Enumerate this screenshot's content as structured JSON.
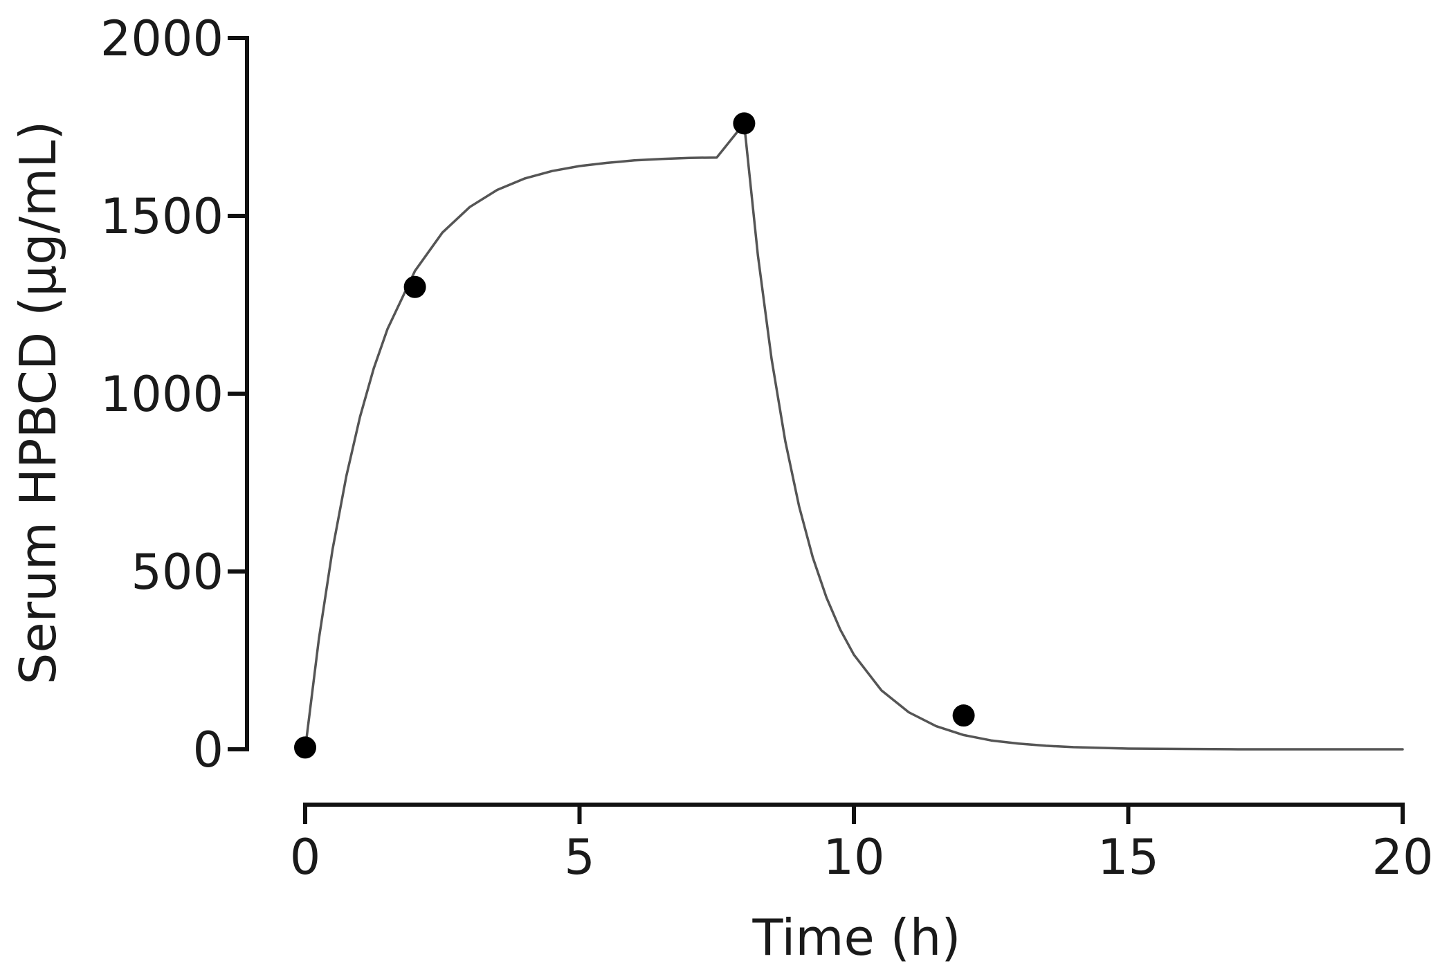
{
  "chart_data": {
    "type": "line",
    "title": "",
    "xlabel": "Time (h)",
    "ylabel": "Serum HPBCD (µg/mL)",
    "xlim": [
      0,
      20
    ],
    "ylim": [
      0,
      2000
    ],
    "xticks": [
      0,
      5,
      10,
      15,
      20
    ],
    "yticks": [
      0,
      500,
      1000,
      1500,
      2000
    ],
    "xtick_labels": [
      "0",
      "5",
      "10",
      "15",
      "20"
    ],
    "ytick_labels": [
      "0",
      "500",
      "1000",
      "1500",
      "2000"
    ],
    "grid": false,
    "legend": "none",
    "series": [
      {
        "kind": "scatter",
        "x": [
          0,
          2,
          8,
          12
        ],
        "y": [
          5,
          1300,
          1760,
          95
        ]
      },
      {
        "kind": "fit-line",
        "x": [
          0,
          0.25,
          0.5,
          0.75,
          1,
          1.25,
          1.5,
          2,
          2.5,
          3,
          3.5,
          4,
          4.5,
          5,
          5.5,
          6,
          6.5,
          7,
          7.5,
          8,
          8.25,
          8.5,
          8.75,
          9,
          9.25,
          9.5,
          9.75,
          10,
          10.5,
          11,
          11.5,
          12,
          12.5,
          13,
          13.5,
          14,
          15,
          16,
          17,
          18,
          19,
          20
        ],
        "y": [
          0,
          310,
          562,
          768,
          935,
          1071,
          1182,
          1345,
          1453,
          1525,
          1573,
          1605,
          1626,
          1640,
          1649,
          1656,
          1660,
          1663,
          1664,
          1760,
          1390,
          1098,
          866,
          684,
          540,
          427,
          337,
          266,
          166,
          104,
          65,
          40,
          25,
          16,
          10,
          6,
          2,
          1,
          0,
          0,
          0,
          0
        ]
      }
    ]
  },
  "colors": {
    "axis": "#111111",
    "curve": "#555555",
    "points": "#000000"
  }
}
